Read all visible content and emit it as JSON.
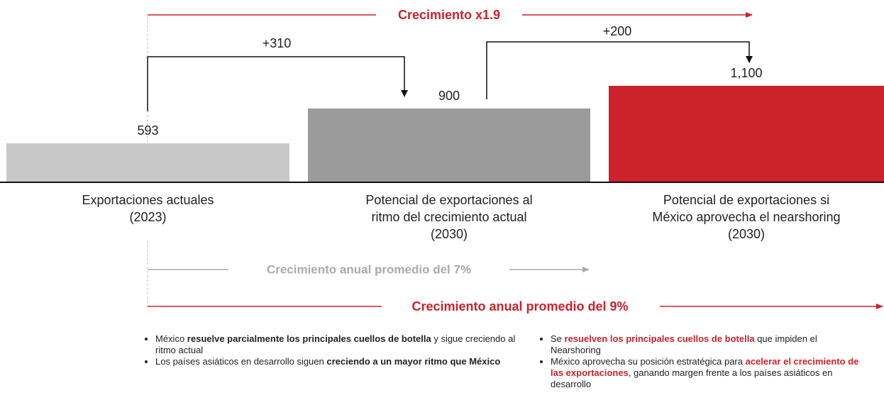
{
  "chart_data": {
    "type": "bar",
    "categories": [
      "Exportaciones actuales\n(2023)",
      "Potencial de exportaciones al\nritmo del crecimiento actual\n(2030)",
      "Potencial de exportaciones si\nMéxico aprovecha el nearshoring\n(2030)"
    ],
    "values": [
      593,
      900,
      1100
    ],
    "value_labels": [
      "593",
      "900",
      "1,100"
    ],
    "colors": [
      "#c8c8c8",
      "#9b9b9b",
      "#cc2229"
    ],
    "ylim": [
      250,
      1250
    ],
    "annotations": {
      "growth_total": "Crecimiento x1.9",
      "step_1": "+310",
      "step_2": "+200",
      "growth_current": "Crecimiento anual promedio del 7%",
      "growth_nearshoring": "Crecimiento anual promedio del 9%"
    },
    "emphasis_color": "#cc2229",
    "notes": [
      {
        "emphasis": "bold",
        "bullets": [
          [
            "México ",
            {
              "text": "resuelve parcialmente los principales cuellos de botella"
            },
            " y sigue creciendo al ritmo actual"
          ],
          [
            "Los países asiáticos en desarrollo siguen ",
            {
              "text": "creciendo a un mayor ritmo que México"
            }
          ]
        ]
      },
      {
        "emphasis": "bold-color",
        "bullets": [
          [
            "Se ",
            {
              "text": "resuelven los principales cuellos de botella"
            },
            " que impiden el Nearshoring"
          ],
          [
            "México aprovecha su posición estratégica para ",
            {
              "text": "acelerar el crecimiento de las exportaciones"
            },
            ", ganando margen frente a los países asiáticos en desarrollo"
          ]
        ]
      }
    ]
  }
}
